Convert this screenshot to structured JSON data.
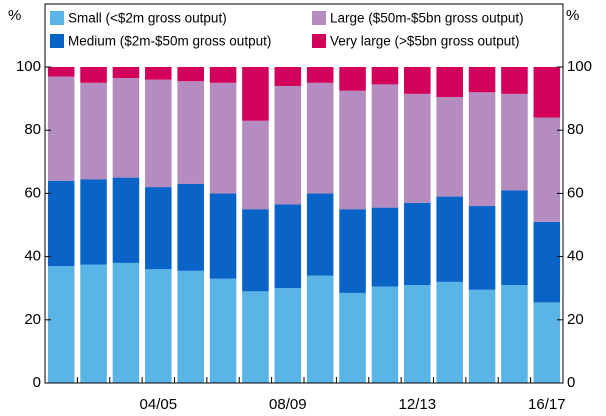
{
  "chart_data": {
    "type": "stacked_bar",
    "y_unit_left": "%",
    "y_unit_right": "%",
    "categories": [
      null,
      null,
      null,
      "04/05",
      null,
      null,
      null,
      "08/09",
      null,
      null,
      null,
      "12/13",
      null,
      null,
      null,
      "16/17"
    ],
    "series": [
      {
        "name": "Small (<$2m gross output)",
        "color": "#5ab4e6",
        "values": [
          37,
          37.5,
          38,
          36,
          35.5,
          33,
          29,
          30,
          34,
          28.5,
          30.5,
          31,
          32,
          29.5,
          31,
          25.5
        ]
      },
      {
        "name": "Medium ($2m-$50m gross output)",
        "color": "#0a64c8",
        "values": [
          27,
          27,
          27,
          26,
          27.5,
          27,
          26,
          26.5,
          26,
          26.5,
          25,
          26,
          27,
          26.5,
          30,
          25.5
        ]
      },
      {
        "name": "Large ($50m-$5bn gross output)",
        "color": "#b48cc0",
        "values": [
          33,
          30.5,
          31.5,
          34,
          32.5,
          35,
          28,
          37.5,
          35,
          37.5,
          39,
          34.5,
          31.5,
          36,
          30.5,
          33
        ]
      },
      {
        "name": "Very large (>$5bn gross output)",
        "color": "#d2005a",
        "values": [
          3,
          5,
          3.5,
          4,
          4.5,
          5,
          17,
          6,
          5,
          7.5,
          5.5,
          8.5,
          9.5,
          8,
          8.5,
          16
        ]
      }
    ],
    "ylim": [
      0,
      100
    ],
    "yticks": [
      0,
      20,
      40,
      60,
      80,
      100
    ],
    "grid": false
  }
}
